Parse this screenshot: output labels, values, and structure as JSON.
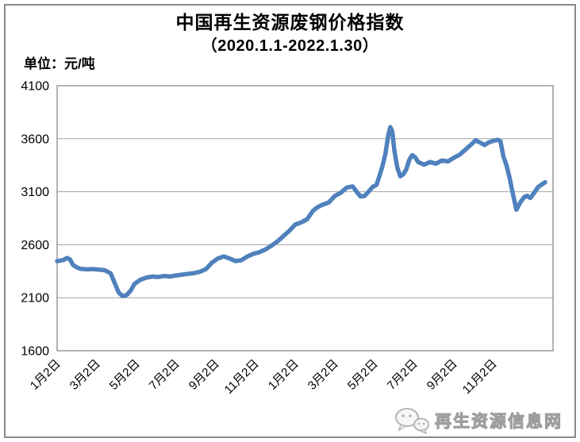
{
  "header": {
    "title": "中国再生资源废钢价格指数",
    "subtitle": "（2020.1.1-2022.1.30）",
    "unit_label": "单位：元/吨"
  },
  "watermark": {
    "site_name": "再生资源信息网",
    "icon": "wechat-bubbles-icon"
  },
  "colors": {
    "line": "#4F81BD",
    "grid": "#a3a3a3",
    "plot_border": "#7f7f7f",
    "frame_border": "#8a8a8a",
    "watermark": "#cfcfcf"
  },
  "chart_data": {
    "type": "line",
    "title": "中国再生资源废钢价格指数",
    "subtitle": "（2020.1.1-2022.1.30）",
    "ylabel": "单位：元/吨",
    "grid": true,
    "legend": false,
    "ylim": [
      1600,
      4100
    ],
    "y_ticks": [
      4100,
      3600,
      3100,
      2600,
      2100,
      1600
    ],
    "x_tick_labels": [
      "1月2日",
      "3月2日",
      "5月2日",
      "7月2日",
      "9月2日",
      "11月2日",
      "1月2日",
      "3月2日",
      "5月2日",
      "7月2日",
      "9月2日",
      "11月2日"
    ],
    "x_tick_months": [
      0,
      2,
      4,
      6,
      8,
      10,
      12,
      14,
      16,
      18,
      20,
      22
    ],
    "x_unit": "months since 2020-01-02",
    "x_range_months": [
      0,
      25
    ],
    "points": [
      [
        0.0,
        2445
      ],
      [
        0.3,
        2455
      ],
      [
        0.5,
        2475
      ],
      [
        0.65,
        2460
      ],
      [
        0.8,
        2410
      ],
      [
        1.0,
        2385
      ],
      [
        1.2,
        2372
      ],
      [
        1.5,
        2368
      ],
      [
        1.8,
        2370
      ],
      [
        2.1,
        2365
      ],
      [
        2.4,
        2360
      ],
      [
        2.7,
        2330
      ],
      [
        2.9,
        2240
      ],
      [
        3.1,
        2150
      ],
      [
        3.3,
        2115
      ],
      [
        3.5,
        2125
      ],
      [
        3.7,
        2165
      ],
      [
        3.9,
        2230
      ],
      [
        4.2,
        2270
      ],
      [
        4.5,
        2290
      ],
      [
        4.8,
        2300
      ],
      [
        5.1,
        2295
      ],
      [
        5.4,
        2305
      ],
      [
        5.7,
        2300
      ],
      [
        6.0,
        2310
      ],
      [
        6.3,
        2318
      ],
      [
        6.6,
        2325
      ],
      [
        6.9,
        2332
      ],
      [
        7.2,
        2345
      ],
      [
        7.5,
        2370
      ],
      [
        7.8,
        2430
      ],
      [
        8.1,
        2470
      ],
      [
        8.4,
        2490
      ],
      [
        8.7,
        2470
      ],
      [
        9.0,
        2445
      ],
      [
        9.3,
        2455
      ],
      [
        9.6,
        2490
      ],
      [
        9.9,
        2515
      ],
      [
        10.2,
        2530
      ],
      [
        10.5,
        2555
      ],
      [
        10.8,
        2590
      ],
      [
        11.1,
        2630
      ],
      [
        11.4,
        2680
      ],
      [
        11.7,
        2730
      ],
      [
        12.0,
        2790
      ],
      [
        12.3,
        2810
      ],
      [
        12.6,
        2840
      ],
      [
        12.9,
        2920
      ],
      [
        13.1,
        2950
      ],
      [
        13.35,
        2975
      ],
      [
        13.7,
        3000
      ],
      [
        14.0,
        3060
      ],
      [
        14.3,
        3090
      ],
      [
        14.6,
        3140
      ],
      [
        14.9,
        3150
      ],
      [
        15.1,
        3100
      ],
      [
        15.3,
        3055
      ],
      [
        15.5,
        3060
      ],
      [
        15.7,
        3100
      ],
      [
        15.9,
        3145
      ],
      [
        16.1,
        3165
      ],
      [
        16.25,
        3250
      ],
      [
        16.4,
        3340
      ],
      [
        16.55,
        3460
      ],
      [
        16.7,
        3640
      ],
      [
        16.8,
        3710
      ],
      [
        16.9,
        3665
      ],
      [
        17.0,
        3490
      ],
      [
        17.15,
        3330
      ],
      [
        17.3,
        3245
      ],
      [
        17.45,
        3265
      ],
      [
        17.6,
        3310
      ],
      [
        17.75,
        3400
      ],
      [
        17.9,
        3445
      ],
      [
        18.05,
        3425
      ],
      [
        18.2,
        3380
      ],
      [
        18.5,
        3355
      ],
      [
        18.8,
        3380
      ],
      [
        19.1,
        3365
      ],
      [
        19.4,
        3395
      ],
      [
        19.7,
        3385
      ],
      [
        20.0,
        3420
      ],
      [
        20.3,
        3450
      ],
      [
        20.6,
        3500
      ],
      [
        20.9,
        3550
      ],
      [
        21.1,
        3585
      ],
      [
        21.35,
        3560
      ],
      [
        21.55,
        3540
      ],
      [
        21.75,
        3565
      ],
      [
        22.0,
        3580
      ],
      [
        22.2,
        3590
      ],
      [
        22.35,
        3575
      ],
      [
        22.5,
        3430
      ],
      [
        22.65,
        3350
      ],
      [
        22.8,
        3240
      ],
      [
        23.0,
        3060
      ],
      [
        23.15,
        2930
      ],
      [
        23.35,
        3000
      ],
      [
        23.55,
        3050
      ],
      [
        23.7,
        3062
      ],
      [
        23.85,
        3040
      ],
      [
        24.05,
        3090
      ],
      [
        24.25,
        3145
      ],
      [
        24.45,
        3170
      ],
      [
        24.6,
        3190
      ]
    ]
  }
}
